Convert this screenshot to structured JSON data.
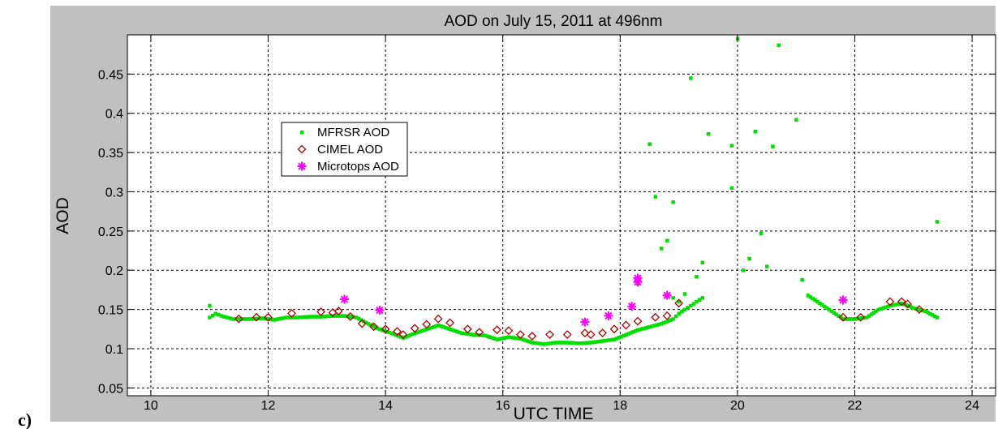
{
  "panel_label": "c)",
  "chart_data": {
    "type": "scatter",
    "title": "AOD on July 15, 2011 at 496nm",
    "xlabel": "UTC TIME",
    "ylabel": "AOD",
    "xlim": [
      9.6,
      24.4
    ],
    "ylim": [
      0.04,
      0.5
    ],
    "xticks": [
      10,
      12,
      14,
      16,
      18,
      20,
      22,
      24
    ],
    "yticks": [
      0.05,
      0.1,
      0.15,
      0.2,
      0.25,
      0.3,
      0.35,
      0.4,
      0.45
    ],
    "ytick_labels": [
      "0.05",
      "0.1",
      "0.15",
      "0.2",
      "0.25",
      "0.3",
      "0.35",
      "0.4",
      "0.45"
    ],
    "grid": true,
    "legend_position": "upper-left",
    "colors": {
      "figure_background": "#c0c0c0",
      "plot_background": "#ffffff",
      "mfrsr": "#00e000",
      "cimel": "#b00000",
      "microtops": "#ff00ff"
    },
    "series": [
      {
        "name": "MFRSR AOD",
        "marker": "dot",
        "segments": [
          {
            "x": [
              11.0,
              11.1,
              11.2,
              11.3,
              11.4,
              11.5,
              11.7,
              11.9,
              12.1,
              12.3,
              12.5,
              12.7,
              12.9,
              13.1,
              13.3,
              13.5,
              13.7,
              13.9,
              14.1,
              14.3,
              14.5,
              14.7,
              14.9,
              15.1,
              15.3,
              15.5,
              15.7,
              15.9,
              16.1,
              16.3,
              16.5,
              16.7,
              16.9,
              17.1,
              17.3,
              17.5,
              17.7,
              17.9,
              18.1,
              18.3,
              18.5,
              18.7,
              18.9,
              19.0,
              19.1,
              19.2,
              19.3,
              19.4
            ],
            "y": [
              0.14,
              0.145,
              0.142,
              0.14,
              0.138,
              0.138,
              0.138,
              0.139,
              0.137,
              0.14,
              0.14,
              0.141,
              0.141,
              0.142,
              0.142,
              0.14,
              0.132,
              0.125,
              0.12,
              0.114,
              0.12,
              0.125,
              0.13,
              0.125,
              0.12,
              0.118,
              0.117,
              0.112,
              0.115,
              0.113,
              0.108,
              0.106,
              0.108,
              0.108,
              0.107,
              0.108,
              0.11,
              0.112,
              0.118,
              0.124,
              0.128,
              0.132,
              0.138,
              0.145,
              0.15,
              0.155,
              0.16,
              0.165
            ]
          },
          {
            "x": [
              21.2,
              21.4,
              21.6,
              21.8,
              22.0,
              22.2,
              22.4,
              22.6,
              22.8,
              23.0,
              23.2,
              23.4
            ],
            "y": [
              0.168,
              0.158,
              0.148,
              0.138,
              0.138,
              0.14,
              0.15,
              0.155,
              0.158,
              0.152,
              0.148,
              0.14
            ]
          }
        ],
        "outliers": {
          "x": [
            11.0,
            18.3,
            18.5,
            18.6,
            18.7,
            18.8,
            18.9,
            19.0,
            19.2,
            19.3,
            19.4,
            19.5,
            19.9,
            20.0,
            20.1,
            20.2,
            20.3,
            20.4,
            20.5,
            20.6,
            20.7,
            21.0,
            21.1,
            23.4,
            18.9,
            19.1,
            19.9
          ],
          "y": [
            0.155,
            0.183,
            0.361,
            0.294,
            0.228,
            0.238,
            0.287,
            0.16,
            0.445,
            0.192,
            0.21,
            0.374,
            0.359,
            0.495,
            0.2,
            0.215,
            0.377,
            0.247,
            0.205,
            0.358,
            0.487,
            0.392,
            0.188,
            0.262,
            0.165,
            0.17,
            0.305
          ]
        }
      },
      {
        "name": "CIMEL AOD",
        "marker": "diamond",
        "x": [
          11.5,
          11.8,
          12.0,
          12.4,
          12.9,
          13.1,
          13.2,
          13.4,
          13.6,
          13.8,
          14.0,
          14.2,
          14.3,
          14.5,
          14.7,
          14.9,
          15.1,
          15.4,
          15.6,
          15.9,
          16.1,
          16.3,
          16.5,
          16.8,
          17.1,
          17.4,
          17.5,
          17.7,
          17.9,
          18.1,
          18.3,
          18.6,
          18.8,
          19.0,
          21.8,
          22.1,
          22.6,
          22.8,
          22.9,
          23.1
        ],
        "y": [
          0.138,
          0.14,
          0.14,
          0.145,
          0.147,
          0.146,
          0.148,
          0.141,
          0.132,
          0.128,
          0.125,
          0.122,
          0.118,
          0.126,
          0.131,
          0.138,
          0.133,
          0.125,
          0.121,
          0.124,
          0.123,
          0.118,
          0.116,
          0.118,
          0.118,
          0.12,
          0.118,
          0.12,
          0.125,
          0.13,
          0.135,
          0.14,
          0.142,
          0.158,
          0.14,
          0.14,
          0.16,
          0.16,
          0.157,
          0.15
        ]
      },
      {
        "name": "Microtops AOD",
        "marker": "star",
        "x": [
          13.3,
          13.9,
          17.4,
          17.8,
          18.2,
          18.3,
          18.3,
          18.8,
          21.8
        ],
        "y": [
          0.163,
          0.149,
          0.134,
          0.142,
          0.154,
          0.19,
          0.185,
          0.168,
          0.162
        ]
      }
    ]
  }
}
